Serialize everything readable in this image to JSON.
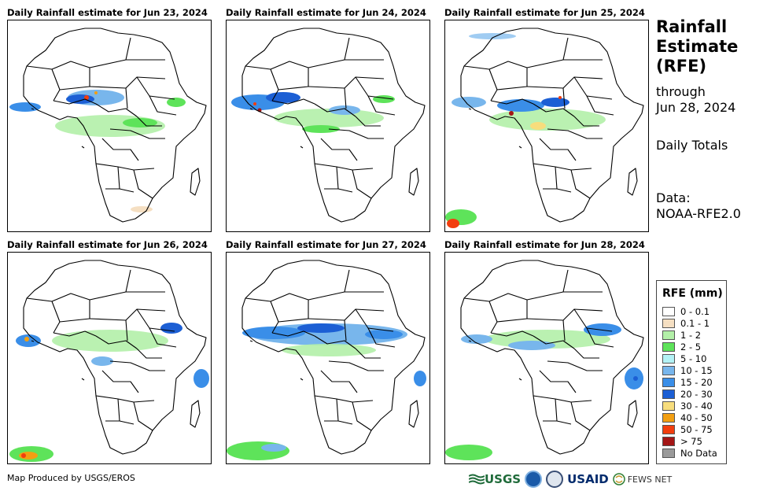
{
  "panels": [
    {
      "title": "Daily Rainfall estimate for Jun 23, 2024"
    },
    {
      "title": "Daily Rainfall estimate for Jun 24, 2024"
    },
    {
      "title": "Daily Rainfall estimate for Jun 25, 2024"
    },
    {
      "title": "Daily Rainfall estimate for Jun 26, 2024"
    },
    {
      "title": "Daily Rainfall estimate for Jun 27, 2024"
    },
    {
      "title": "Daily Rainfall estimate for Jun 28, 2024"
    }
  ],
  "side": {
    "title_line1": "Rainfall",
    "title_line2": "Estimate",
    "title_line3": "(RFE)",
    "through_label": "through",
    "through_date": "Jun 28, 2024",
    "period": "Daily Totals",
    "data_label": "Data:",
    "data_source": "NOAA-RFE2.0"
  },
  "legend": {
    "title": "RFE (mm)",
    "items": [
      {
        "label": "0 - 0.1",
        "color": "#ffffff"
      },
      {
        "label": "0.1 - 1",
        "color": "#f5dfc2"
      },
      {
        "label": "1 - 2",
        "color": "#b3f0a8"
      },
      {
        "label": "2 - 5",
        "color": "#5ee35a"
      },
      {
        "label": "5 - 10",
        "color": "#b3f2f5"
      },
      {
        "label": "10 - 15",
        "color": "#78b6ec"
      },
      {
        "label": "15 - 20",
        "color": "#3a8ee8"
      },
      {
        "label": "20 - 30",
        "color": "#1c5fd4"
      },
      {
        "label": "30 - 40",
        "color": "#f7dd7d"
      },
      {
        "label": "40 - 50",
        "color": "#f29f12"
      },
      {
        "label": "50 - 75",
        "color": "#f23e0e"
      },
      {
        "label": "> 75",
        "color": "#a41616"
      },
      {
        "label": "No Data",
        "color": "#9a9a9a"
      }
    ]
  },
  "footer": {
    "credit": "Map Produced by USGS/EROS",
    "logo_usgs": "USGS",
    "logo_usaid": "USAID",
    "logo_fews": "FEWS NET"
  }
}
